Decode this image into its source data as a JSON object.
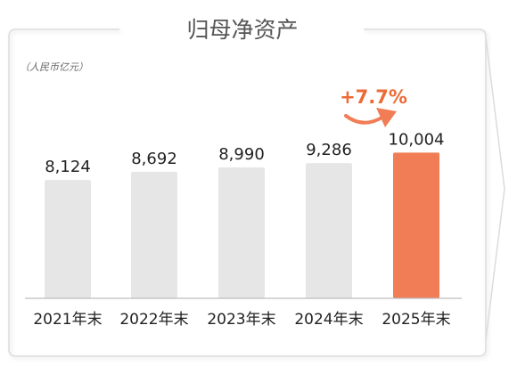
{
  "chart_data": {
    "type": "bar",
    "title": "归母净资产",
    "unit_note": "（人民币亿元）",
    "categories": [
      "2021年末",
      "2022年末",
      "2023年末",
      "2024年末",
      "2025年末"
    ],
    "values": [
      8124,
      8692,
      8990,
      9286,
      10004
    ],
    "value_labels": [
      "8,124",
      "8,692",
      "8,990",
      "9,286",
      "10,004"
    ],
    "highlight_index": 4,
    "growth_label": "+7.7%",
    "colors": {
      "bar": "#e6e6e6",
      "highlight": "#f07d55",
      "accent_text": "#ee6a35",
      "frame": "#dcdcdc",
      "axis": "#bdbdbd",
      "text": "#222222",
      "title": "#555555",
      "note": "#666666"
    }
  }
}
